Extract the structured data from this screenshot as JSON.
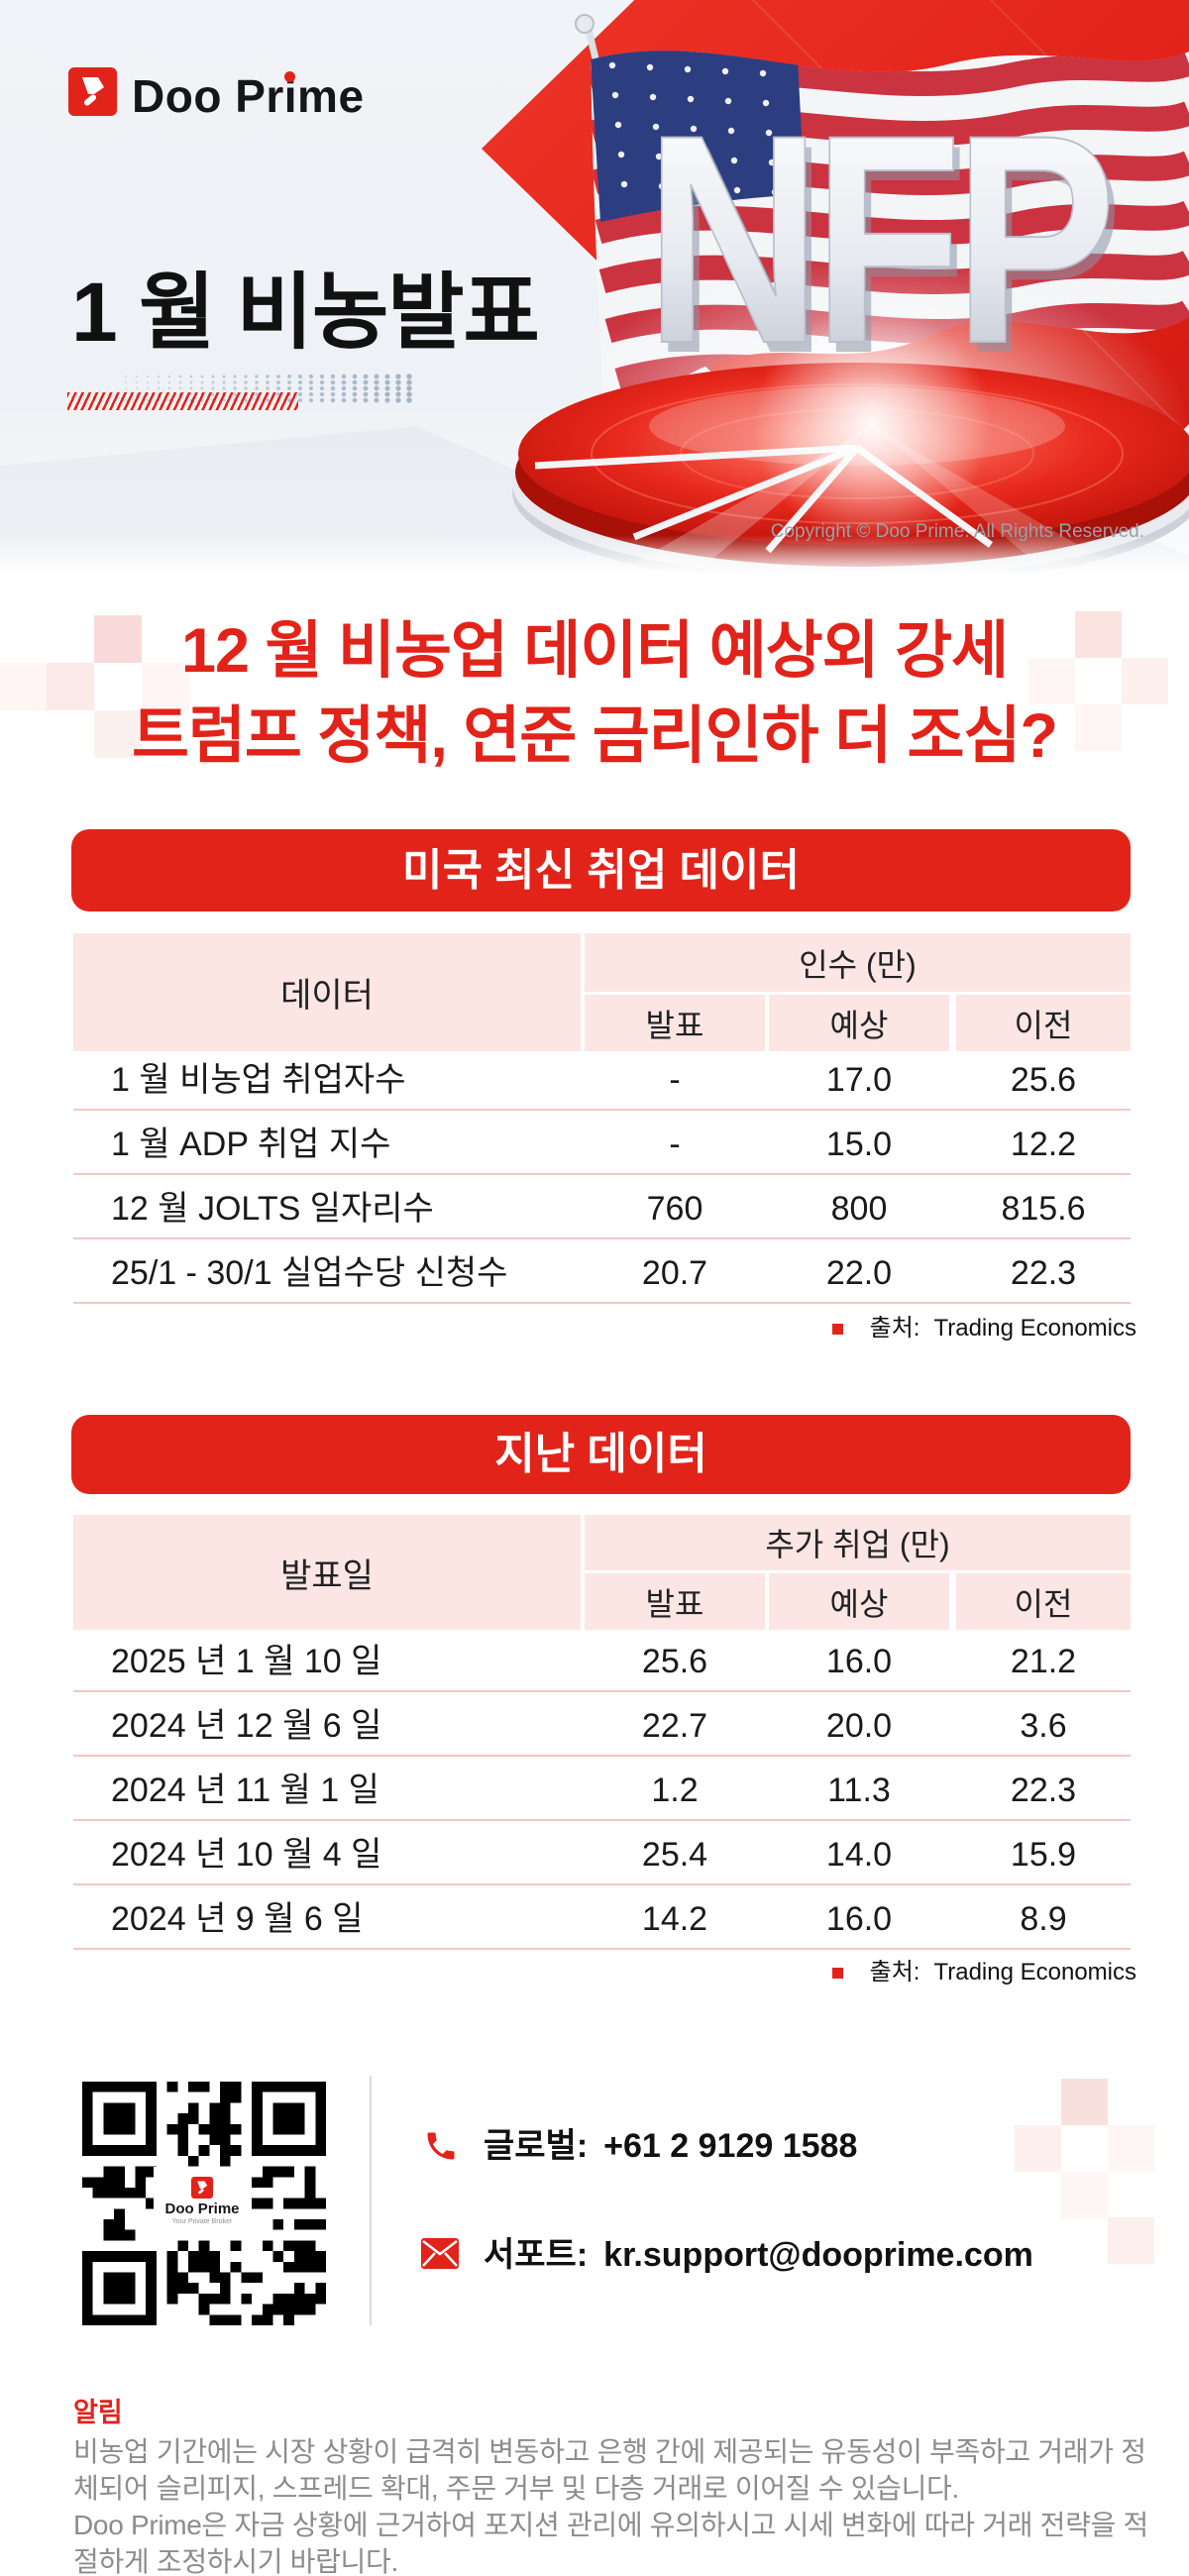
{
  "colors": {
    "brand_red": "#e2231a",
    "table_header_pink": "#fbe6e4",
    "row_divider_pink": "#f2c7c3",
    "footer_text_gray": "#8c8c8c",
    "copyright_gray": "#9ba0a8"
  },
  "logo": {
    "name": "Doo Prime"
  },
  "hero": {
    "title": "1 월 비농발표",
    "nfp_text": "NFP",
    "copyright": "Copyright © Doo Prime. All Rights Reserved."
  },
  "headline": {
    "line1": "12 월 비농업 데이터 예상외 강세",
    "line2": "트럼프 정책, 연준 금리인하 더 조심?"
  },
  "table1": {
    "banner": "미국 최신 취업 데이터",
    "row_header": "데이터",
    "group_header": "인수 (만)",
    "subcols": [
      "발표",
      "예상",
      "이전"
    ],
    "rows": [
      {
        "label": "1 월 비농업 취업자수",
        "values": [
          "-",
          "17.0",
          "25.6"
        ]
      },
      {
        "label": "1 월 ADP 취업 지수",
        "values": [
          "-",
          "15.0",
          "12.2"
        ]
      },
      {
        "label": "12 월 JOLTS 일자리수",
        "values": [
          "760",
          "800",
          "815.6"
        ]
      },
      {
        "label": "25/1 - 30/1 실업수당 신청수",
        "values": [
          "20.7",
          "22.0",
          "22.3"
        ]
      }
    ],
    "source_label": "출처:",
    "source_name": "Trading Economics"
  },
  "table2": {
    "banner": "지난 데이터",
    "row_header": "발표일",
    "group_header": "추가 취업 (만)",
    "subcols": [
      "발표",
      "예상",
      "이전"
    ],
    "rows": [
      {
        "label": "2025 년 1 월 10 일",
        "values": [
          "25.6",
          "16.0",
          "21.2"
        ]
      },
      {
        "label": "2024 년 12 월 6 일",
        "values": [
          "22.7",
          "20.0",
          "3.6"
        ]
      },
      {
        "label": "2024 년 11 월 1 일",
        "values": [
          "1.2",
          "11.3",
          "22.3"
        ]
      },
      {
        "label": "2024 년 10 월 4 일",
        "values": [
          "25.4",
          "14.0",
          "15.9"
        ]
      },
      {
        "label": "2024 년 9 월 6 일",
        "values": [
          "14.2",
          "16.0",
          "8.9"
        ]
      }
    ],
    "source_label": "출처:",
    "source_name": "Trading Economics"
  },
  "contact": {
    "phone_label": "글로벌:",
    "phone_number": "+61 2 9129 1588",
    "email_label": "서포트:",
    "email": "kr.support@dooprime.com",
    "qr_brand": "Doo Prime",
    "qr_tagline": "Your Private Broker"
  },
  "footer": {
    "title": "알림",
    "para1": "비농업 기간에는 시장 상황이 급격히 변동하고 은행 간에 제공되는 유동성이 부족하고 거래가 정체되어 슬리피지, 스프레드 확대, 주문 거부 및 다층 거래로 이어질 수 있습니다.",
    "para2": "Doo Prime은 자금 상황에 근거하여 포지션 관리에 유의하시고 시세 변화에 따라 거래 전략을 적절하게 조정하시기 바랍니다."
  }
}
